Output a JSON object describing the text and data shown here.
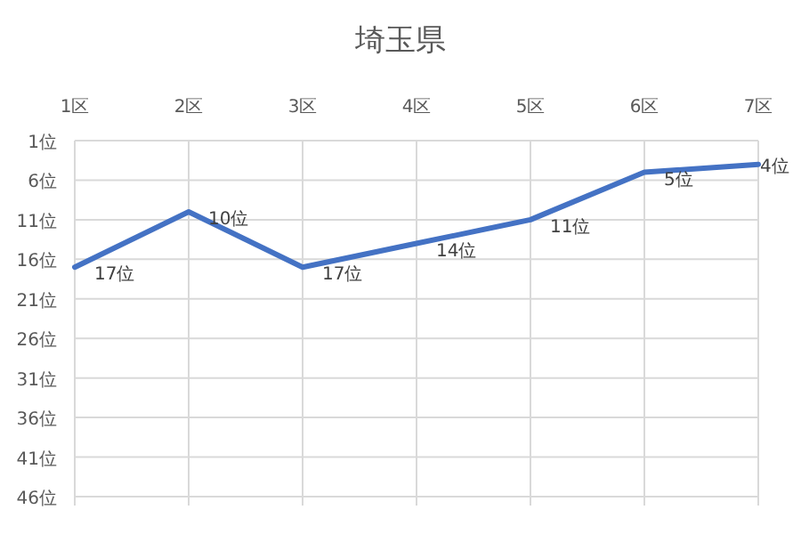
{
  "chart_data": {
    "type": "line",
    "title": "埼玉県",
    "categories": [
      "1区",
      "2区",
      "3区",
      "4区",
      "5区",
      "6区",
      "7区"
    ],
    "series": [
      {
        "color": "#4472c4",
        "values": [
          17,
          10,
          17,
          14,
          11,
          5,
          4
        ],
        "value_labels": [
          "17位",
          "10位",
          "17位",
          "14位",
          "11位",
          "5位",
          "4位"
        ]
      }
    ],
    "ylim": [
      46,
      1
    ],
    "yticks": [
      {
        "value": 1,
        "label": "1位"
      },
      {
        "value": 6,
        "label": "6位"
      },
      {
        "value": 11,
        "label": "11位"
      },
      {
        "value": 16,
        "label": "16位"
      },
      {
        "value": 21,
        "label": "21位"
      },
      {
        "value": 26,
        "label": "26位"
      },
      {
        "value": 31,
        "label": "31位"
      },
      {
        "value": 36,
        "label": "36位"
      },
      {
        "value": 41,
        "label": "41位"
      },
      {
        "value": 46,
        "label": "46位"
      }
    ],
    "grid": true
  }
}
